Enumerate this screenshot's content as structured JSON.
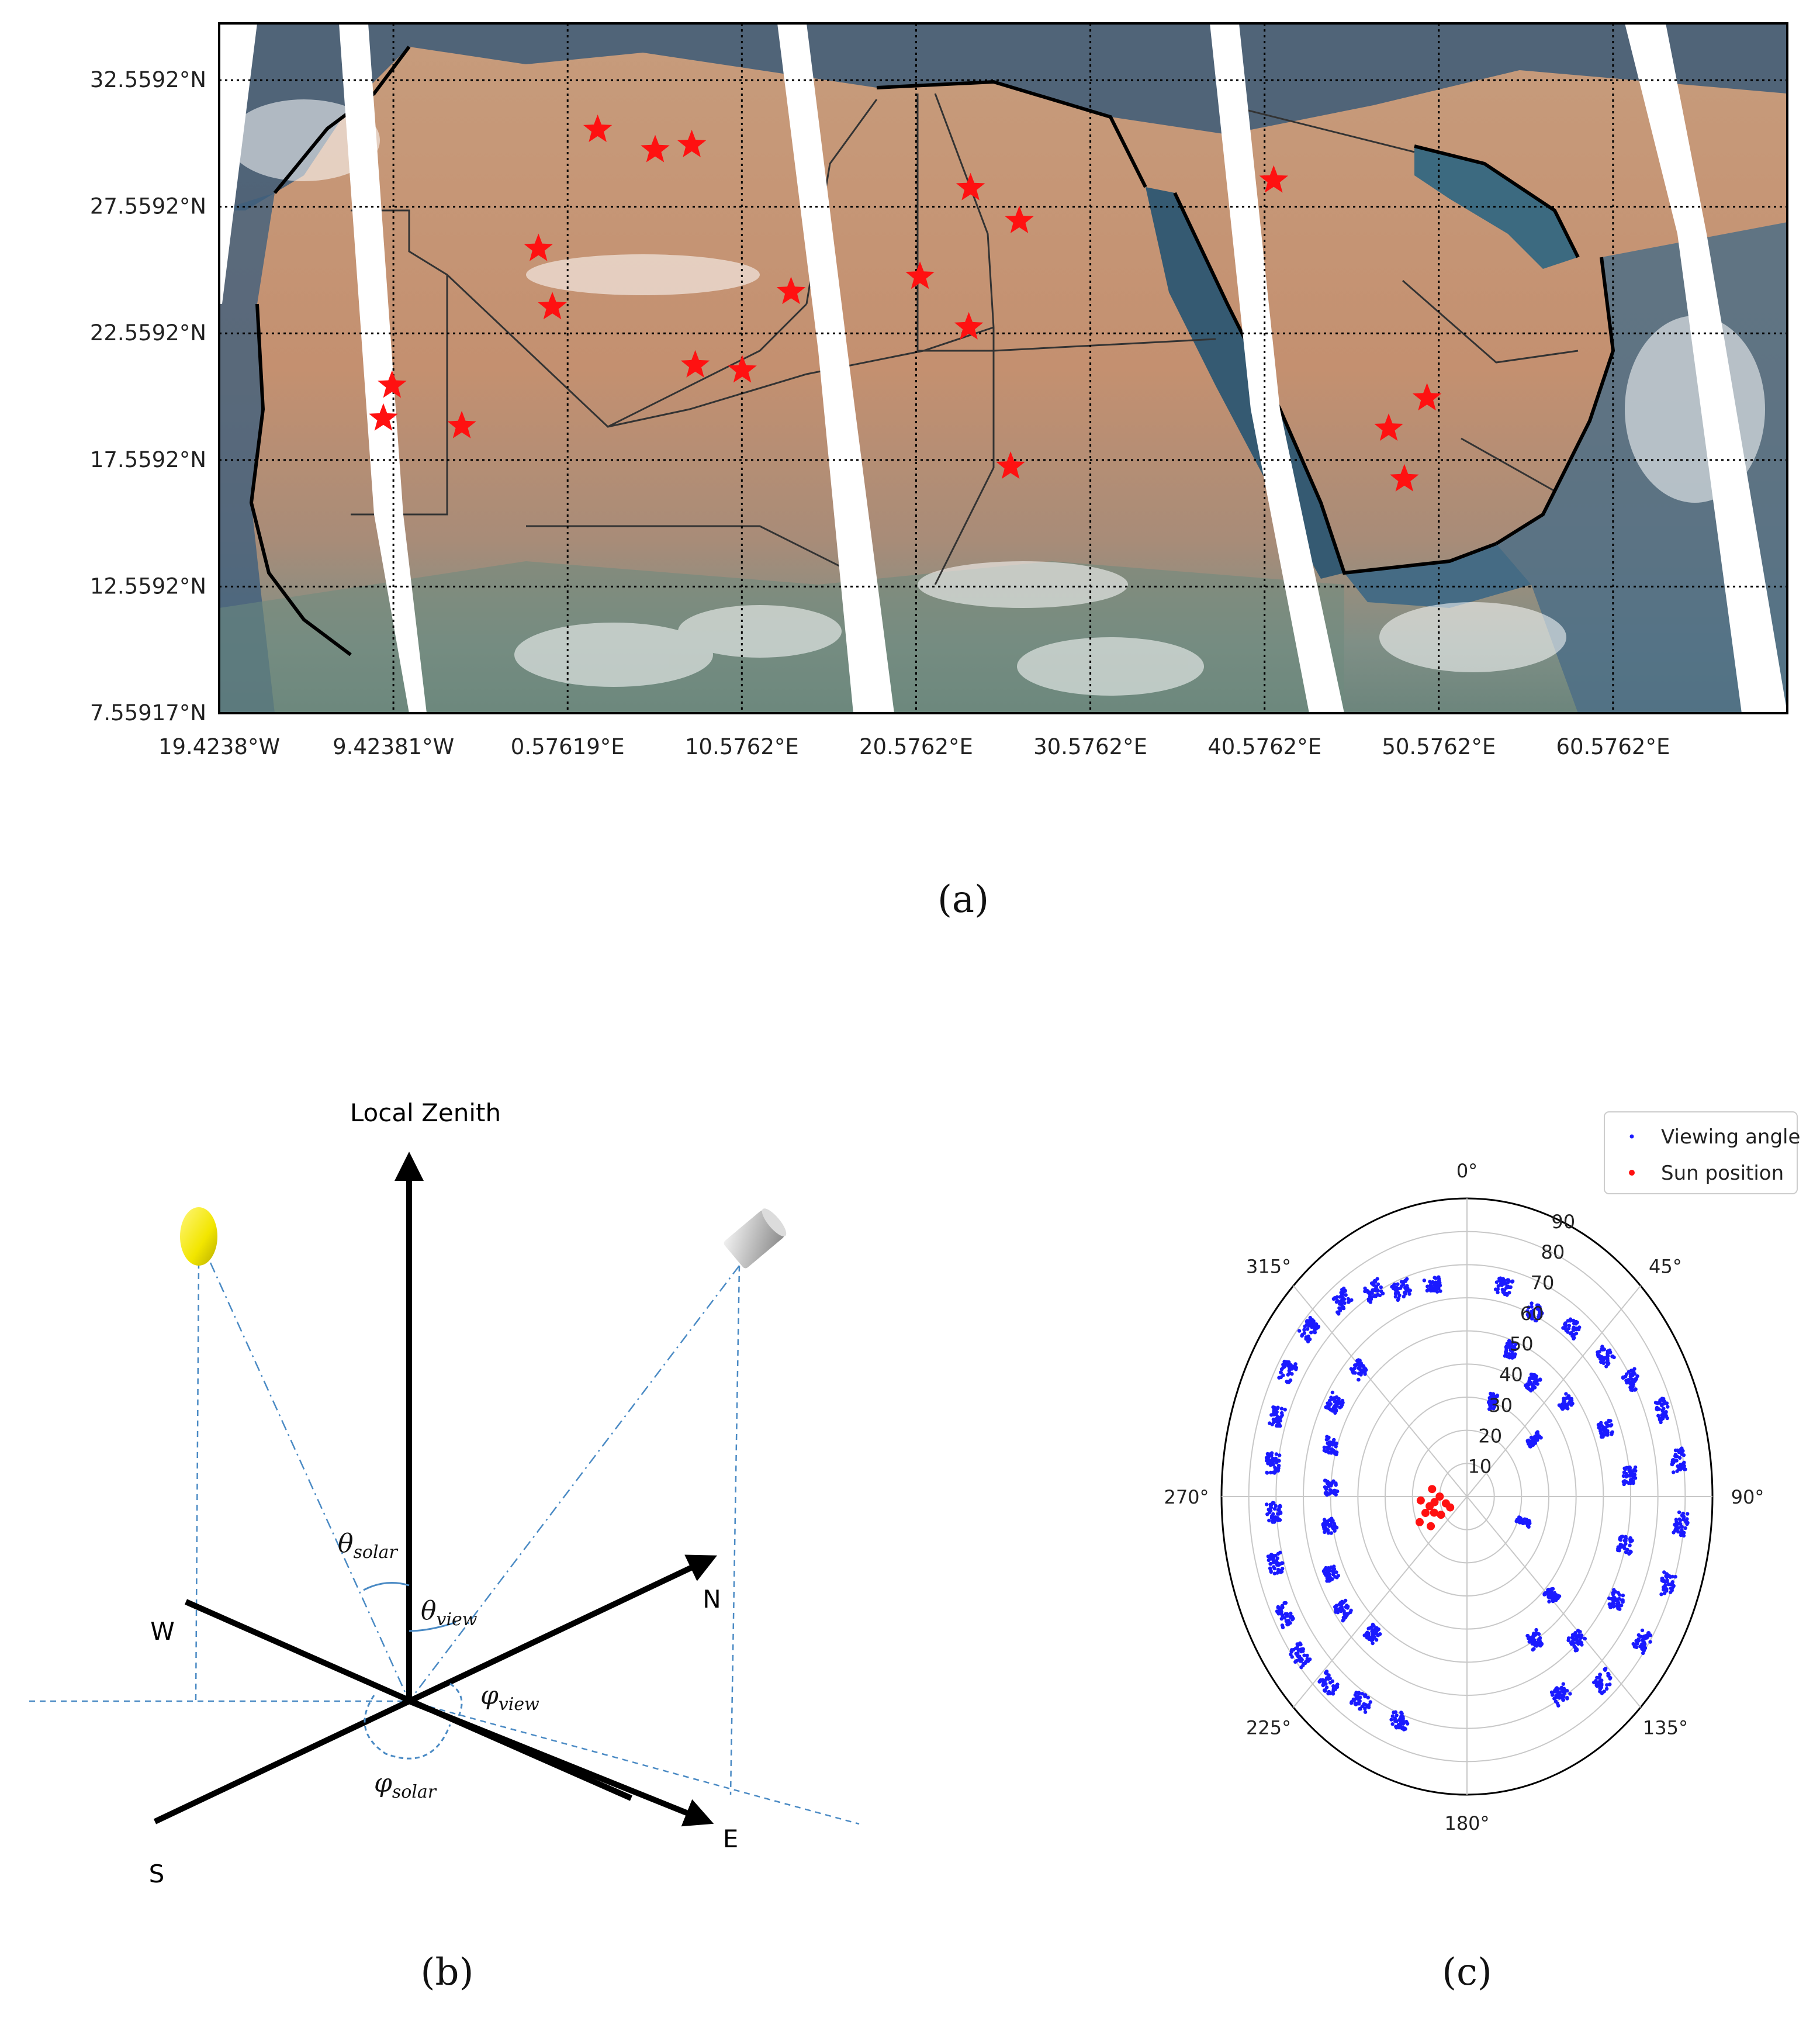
{
  "panel_a": {
    "caption": "(a)",
    "chart_data": {
      "type": "scatter",
      "title": "",
      "x_ticks": [
        "19.4238°W",
        "9.42381°W",
        "0.57619°E",
        "10.5762°E",
        "20.5762°E",
        "30.5762°E",
        "40.5762°E",
        "50.5762°E",
        "60.5762°E"
      ],
      "y_ticks": [
        "32.5592°N",
        "27.5592°N",
        "22.5592°N",
        "17.5592°N",
        "12.5592°N",
        "7.55917°N"
      ],
      "xlim": [
        -19.4238,
        70.5762
      ],
      "ylim": [
        7.55917,
        34.8
      ],
      "series": [
        {
          "name": "site",
          "marker": "star",
          "color": "#ff1111",
          "points": [
            {
              "lon": 2.3,
              "lat": 30.6
            },
            {
              "lon": 5.6,
              "lat": 29.8
            },
            {
              "lon": 7.7,
              "lat": 30.0
            },
            {
              "lon": -1.1,
              "lat": 25.9
            },
            {
              "lon": -0.3,
              "lat": 23.6
            },
            {
              "lon": -9.5,
              "lat": 20.5
            },
            {
              "lon": -10.0,
              "lat": 19.2
            },
            {
              "lon": -5.5,
              "lat": 18.9
            },
            {
              "lon": 7.9,
              "lat": 21.3
            },
            {
              "lon": 10.6,
              "lat": 21.1
            },
            {
              "lon": 13.4,
              "lat": 24.2
            },
            {
              "lon": 20.8,
              "lat": 24.8
            },
            {
              "lon": 23.7,
              "lat": 28.3
            },
            {
              "lon": 26.5,
              "lat": 27.0
            },
            {
              "lon": 23.6,
              "lat": 22.8
            },
            {
              "lon": 26.0,
              "lat": 17.3
            },
            {
              "lon": 41.1,
              "lat": 28.6
            },
            {
              "lon": 47.7,
              "lat": 18.8
            },
            {
              "lon": 49.9,
              "lat": 20.0
            },
            {
              "lon": 48.6,
              "lat": 16.8
            }
          ]
        }
      ]
    }
  },
  "panel_b": {
    "caption": "(b)",
    "labels": {
      "zenith": "Local Zenith",
      "west": "W",
      "north": "N",
      "south": "S",
      "east": "E",
      "theta": "θ",
      "phi": "φ",
      "solar": "solar",
      "view": "view"
    },
    "colors": {
      "sun": "#f2e600",
      "guide": "#4a8ac4"
    }
  },
  "panel_c": {
    "caption": "(c)",
    "chart_data": {
      "type": "scatter",
      "projection": "polar",
      "theta_ticks": [
        "0°",
        "45°",
        "90°",
        "135°",
        "180°",
        "225°",
        "270°",
        "315°"
      ],
      "r_ticks": [
        "10",
        "20",
        "30",
        "40",
        "50",
        "60",
        "70",
        "80",
        "90"
      ],
      "rlim": [
        0,
        90
      ],
      "legend_position": "top-right",
      "series": [
        {
          "name": "Viewing angle",
          "color": "#1a1aff",
          "clusters": [
            {
              "az": 349,
              "zen": 65
            },
            {
              "az": 339,
              "zen": 67
            },
            {
              "az": 331,
              "zen": 71
            },
            {
              "az": 322,
              "zen": 75
            },
            {
              "az": 311,
              "zen": 77
            },
            {
              "az": 300,
              "zen": 76
            },
            {
              "az": 289,
              "zen": 74
            },
            {
              "az": 278,
              "zen": 72
            },
            {
              "az": 266,
              "zen": 71
            },
            {
              "az": 254,
              "zen": 73
            },
            {
              "az": 242,
              "zen": 76
            },
            {
              "az": 232,
              "zen": 78
            },
            {
              "az": 222,
              "zen": 76
            },
            {
              "az": 212,
              "zen": 73
            },
            {
              "az": 200,
              "zen": 72
            },
            {
              "az": 314,
              "zen": 55
            },
            {
              "az": 300,
              "zen": 56
            },
            {
              "az": 287,
              "zen": 52
            },
            {
              "az": 273,
              "zen": 50
            },
            {
              "az": 260,
              "zen": 51
            },
            {
              "az": 245,
              "zen": 55
            },
            {
              "az": 233,
              "zen": 57
            },
            {
              "az": 220,
              "zen": 54
            },
            {
              "az": 12,
              "zen": 65
            },
            {
              "az": 24,
              "zen": 61
            },
            {
              "az": 37,
              "zen": 64
            },
            {
              "az": 50,
              "zen": 66
            },
            {
              "az": 60,
              "zen": 70
            },
            {
              "az": 70,
              "zen": 76
            },
            {
              "az": 82,
              "zen": 78
            },
            {
              "az": 96,
              "zen": 79
            },
            {
              "az": 110,
              "zen": 78
            },
            {
              "az": 124,
              "zen": 78
            },
            {
              "az": 138,
              "zen": 75
            },
            {
              "az": 150,
              "zen": 69
            },
            {
              "az": 20,
              "zen": 47
            },
            {
              "az": 35,
              "zen": 42
            },
            {
              "az": 52,
              "zen": 46
            },
            {
              "az": 68,
              "zen": 55
            },
            {
              "az": 84,
              "zen": 60
            },
            {
              "az": 104,
              "zen": 60
            },
            {
              "az": 120,
              "zen": 63
            },
            {
              "az": 137,
              "zen": 59
            },
            {
              "az": 18,
              "zen": 30
            },
            {
              "az": 55,
              "zen": 30
            },
            {
              "az": 110,
              "zen": 22
            },
            {
              "az": 134,
              "zen": 43
            },
            {
              "az": 150,
              "zen": 50
            }
          ]
        },
        {
          "name": "Sun position",
          "color": "#ff1111",
          "points": [
            {
              "az": 258,
              "zen": 14
            },
            {
              "az": 262,
              "zen": 12
            },
            {
              "az": 248,
              "zen": 13
            },
            {
              "az": 240,
              "zen": 11
            },
            {
              "az": 270,
              "zen": 10
            },
            {
              "az": 255,
              "zen": 8
            },
            {
              "az": 236,
              "zen": 16
            },
            {
              "az": 246,
              "zen": 19
            },
            {
              "az": 266,
              "zen": 17
            },
            {
              "az": 280,
              "zen": 13
            },
            {
              "az": 252,
              "zen": 16
            },
            {
              "az": 242,
              "zen": 7
            }
          ]
        }
      ]
    }
  }
}
